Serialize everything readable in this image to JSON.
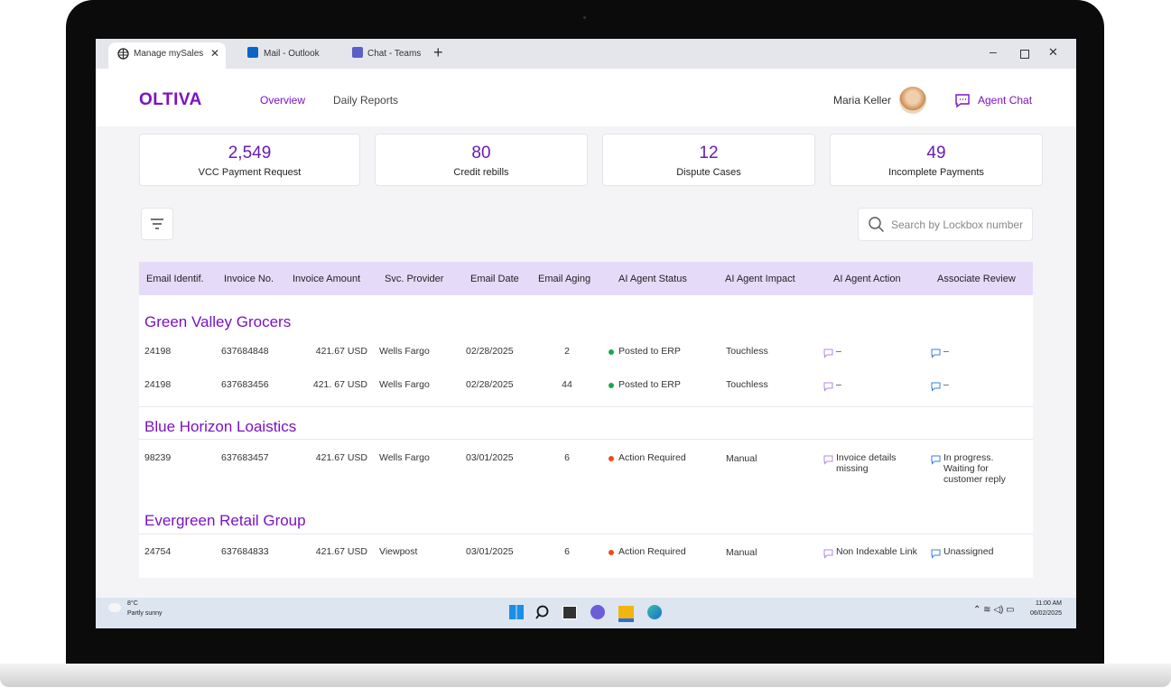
{
  "browser": {
    "tabs": [
      "Manage mySales",
      "Mail - Outlook",
      "Chat - Teams"
    ]
  },
  "header": {
    "logo": "OLTIVA",
    "nav": [
      "Overview",
      "Daily Reports"
    ],
    "user": "Maria Keller",
    "chat": "Agent Chat"
  },
  "stats": [
    {
      "value": "2,549",
      "label": "VCC Payment Request"
    },
    {
      "value": "80",
      "label": "Credit rebills"
    },
    {
      "value": "12",
      "label": "Dispute Cases"
    },
    {
      "value": "49",
      "label": "Incomplete Payments"
    }
  ],
  "search_placeholder": "Search by Lockbox number",
  "table": {
    "columns": [
      "Email Identif.",
      "Invoice No.",
      "Invoice Amount",
      "Svc. Provider",
      "Email Date",
      "Email Aging",
      "AI Agent Status",
      "AI Agent Impact",
      "AI Agent Action",
      "Associate Review"
    ],
    "groups": [
      {
        "name": "Green Valley Grocers",
        "rows": [
          [
            "24198",
            "637684848",
            "421.67 USD",
            "Wells Fargo",
            "02/28/2025",
            "2",
            "Posted to ERP",
            "Touchless",
            "–",
            "–"
          ],
          [
            "24198",
            "637683456",
            "421. 67 USD",
            "Wells Fargo",
            "02/28/2025",
            "44",
            "Posted to ERP",
            "Touchless",
            "–",
            "–"
          ]
        ]
      },
      {
        "name": "Blue Horizon Loaistics",
        "rows": [
          [
            "98239",
            "637683457",
            "421.67 USD",
            "Wells Fargo",
            "03/01/2025",
            "6",
            "Action Required",
            "Manual",
            "Invoice details missing",
            "In progress. Waiting for customer reply"
          ]
        ]
      },
      {
        "name": "Evergreen Retail Group",
        "rows": [
          [
            "24754",
            "637684833",
            "421.67 USD",
            "Viewpost",
            "03/01/2025",
            "6",
            "Action Required",
            "Manual",
            "Non Indexable Link",
            "Unassigned"
          ]
        ]
      }
    ]
  },
  "taskbar": {
    "temp": "8°C",
    "weather": "Partly sunny",
    "time": "11:00 AM",
    "date": "06/02/2025"
  }
}
